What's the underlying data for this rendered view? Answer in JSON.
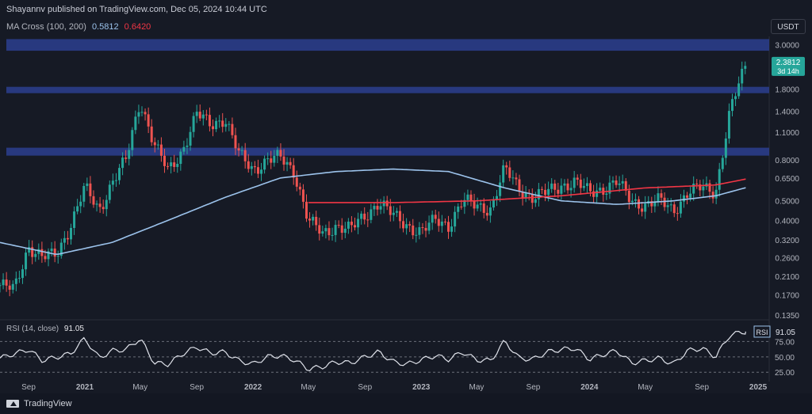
{
  "header": {
    "title": "Shayannv published on TradingView.com, Dec 05, 2024 10:44 UTC"
  },
  "indicator": {
    "name": "MA Cross (100, 200)",
    "ma100_value": "0.5812",
    "ma200_value": "0.6420"
  },
  "currency": "USDT",
  "price_tag": {
    "price": "2.3812",
    "countdown": "3d 14h"
  },
  "rsi": {
    "label": "RSI (14, close)",
    "value": "91.05",
    "tag_label": "RSI",
    "levels": [
      "75.00",
      "50.00",
      "25.00"
    ]
  },
  "footer": {
    "brand": "TradingView"
  },
  "colors": {
    "up": "#26a69a",
    "down": "#ef5350",
    "ma100": "#9cc3ec",
    "ma200": "#f23645",
    "zone": "#2b3f8f",
    "background": "#161a25"
  },
  "chart_data": {
    "type": "candlestick",
    "scale": "log",
    "y_ticks": [
      "3.0000",
      "1.8000",
      "1.4000",
      "1.1000",
      "0.8000",
      "0.6500",
      "0.5000",
      "0.4000",
      "0.3200",
      "0.2600",
      "0.2100",
      "0.1700",
      "0.1350"
    ],
    "x_ticks": [
      "Sep",
      "2021",
      "May",
      "Sep",
      "2022",
      "May",
      "Sep",
      "2023",
      "May",
      "Sep",
      "2024",
      "May",
      "Sep",
      "2025"
    ],
    "supply_zones": [
      {
        "low": 2.8,
        "high": 3.2
      },
      {
        "low": 1.72,
        "high": 1.85
      },
      {
        "low": 0.84,
        "high": 0.92
      }
    ],
    "price_path": [
      [
        "2020-07-01",
        0.19
      ],
      [
        "2020-08-01",
        0.18
      ],
      [
        "2020-09-01",
        0.3
      ],
      [
        "2020-10-01",
        0.26
      ],
      [
        "2020-11-01",
        0.27
      ],
      [
        "2020-12-01",
        0.38
      ],
      [
        "2021-01-01",
        0.58
      ],
      [
        "2021-02-01",
        0.45
      ],
      [
        "2021-03-01",
        0.62
      ],
      [
        "2021-04-01",
        0.8
      ],
      [
        "2021-05-01",
        1.6
      ],
      [
        "2021-06-01",
        0.95
      ],
      [
        "2021-07-01",
        0.7
      ],
      [
        "2021-08-01",
        0.9
      ],
      [
        "2021-09-01",
        1.35
      ],
      [
        "2021-10-01",
        1.2
      ],
      [
        "2021-11-01",
        1.3
      ],
      [
        "2021-12-01",
        0.85
      ],
      [
        "2022-01-01",
        0.72
      ],
      [
        "2022-02-01",
        0.8
      ],
      [
        "2022-03-01",
        0.82
      ],
      [
        "2022-04-01",
        0.7
      ],
      [
        "2022-05-01",
        0.4
      ],
      [
        "2022-06-01",
        0.34
      ],
      [
        "2022-07-01",
        0.38
      ],
      [
        "2022-08-01",
        0.36
      ],
      [
        "2022-09-01",
        0.42
      ],
      [
        "2022-10-01",
        0.5
      ],
      [
        "2022-11-01",
        0.42
      ],
      [
        "2022-12-01",
        0.38
      ],
      [
        "2023-01-01",
        0.35
      ],
      [
        "2023-02-01",
        0.4
      ],
      [
        "2023-03-01",
        0.38
      ],
      [
        "2023-04-01",
        0.5
      ],
      [
        "2023-05-01",
        0.47
      ],
      [
        "2023-06-01",
        0.46
      ],
      [
        "2023-07-01",
        0.72
      ],
      [
        "2023-08-01",
        0.58
      ],
      [
        "2023-09-01",
        0.52
      ],
      [
        "2023-10-01",
        0.55
      ],
      [
        "2023-11-01",
        0.6
      ],
      [
        "2023-12-01",
        0.62
      ],
      [
        "2024-01-01",
        0.55
      ],
      [
        "2024-02-01",
        0.58
      ],
      [
        "2024-03-01",
        0.62
      ],
      [
        "2024-04-01",
        0.5
      ],
      [
        "2024-05-01",
        0.48
      ],
      [
        "2024-06-01",
        0.5
      ],
      [
        "2024-07-01",
        0.45
      ],
      [
        "2024-08-01",
        0.55
      ],
      [
        "2024-09-01",
        0.58
      ],
      [
        "2024-10-01",
        0.56
      ],
      [
        "2024-11-01",
        1.4
      ],
      [
        "2024-12-05",
        2.3812
      ]
    ],
    "ma100": [
      [
        "2020-07-01",
        0.31
      ],
      [
        "2020-11-01",
        0.27
      ],
      [
        "2021-03-01",
        0.31
      ],
      [
        "2021-07-01",
        0.4
      ],
      [
        "2021-11-01",
        0.52
      ],
      [
        "2022-03-01",
        0.65
      ],
      [
        "2022-07-01",
        0.7
      ],
      [
        "2022-11-01",
        0.72
      ],
      [
        "2023-03-01",
        0.7
      ],
      [
        "2023-07-01",
        0.58
      ],
      [
        "2023-11-01",
        0.5
      ],
      [
        "2024-03-01",
        0.48
      ],
      [
        "2024-07-01",
        0.5
      ],
      [
        "2024-10-01",
        0.53
      ],
      [
        "2024-12-05",
        0.5812
      ]
    ],
    "ma200": [
      [
        "2022-05-01",
        0.49
      ],
      [
        "2022-11-01",
        0.49
      ],
      [
        "2023-05-01",
        0.5
      ],
      [
        "2023-11-01",
        0.53
      ],
      [
        "2024-05-01",
        0.58
      ],
      [
        "2024-10-01",
        0.6
      ],
      [
        "2024-12-05",
        0.642
      ]
    ],
    "rsi_path": [
      [
        "2020-07-01",
        48
      ],
      [
        "2020-09-01",
        62
      ],
      [
        "2020-10-01",
        44
      ],
      [
        "2020-12-01",
        55
      ],
      [
        "2021-01-01",
        80
      ],
      [
        "2021-02-01",
        48
      ],
      [
        "2021-03-01",
        60
      ],
      [
        "2021-04-01",
        62
      ],
      [
        "2021-05-01",
        80
      ],
      [
        "2021-06-01",
        40
      ],
      [
        "2021-07-01",
        38
      ],
      [
        "2021-08-01",
        55
      ],
      [
        "2021-09-01",
        66
      ],
      [
        "2021-10-01",
        56
      ],
      [
        "2021-11-01",
        58
      ],
      [
        "2021-12-01",
        44
      ],
      [
        "2022-01-01",
        38
      ],
      [
        "2022-02-01",
        50
      ],
      [
        "2022-03-01",
        52
      ],
      [
        "2022-04-01",
        45
      ],
      [
        "2022-05-01",
        30
      ],
      [
        "2022-06-01",
        34
      ],
      [
        "2022-07-01",
        42
      ],
      [
        "2022-08-01",
        40
      ],
      [
        "2022-09-01",
        50
      ],
      [
        "2022-10-01",
        58
      ],
      [
        "2022-11-01",
        42
      ],
      [
        "2022-12-01",
        38
      ],
      [
        "2023-01-01",
        45
      ],
      [
        "2023-02-01",
        52
      ],
      [
        "2023-03-01",
        46
      ],
      [
        "2023-04-01",
        58
      ],
      [
        "2023-05-01",
        45
      ],
      [
        "2023-06-01",
        44
      ],
      [
        "2023-07-01",
        76
      ],
      [
        "2023-08-01",
        48
      ],
      [
        "2023-09-01",
        46
      ],
      [
        "2023-10-01",
        58
      ],
      [
        "2023-11-01",
        62
      ],
      [
        "2023-12-01",
        64
      ],
      [
        "2024-01-01",
        46
      ],
      [
        "2024-02-01",
        54
      ],
      [
        "2024-03-01",
        60
      ],
      [
        "2024-04-01",
        40
      ],
      [
        "2024-05-01",
        44
      ],
      [
        "2024-06-01",
        48
      ],
      [
        "2024-07-01",
        38
      ],
      [
        "2024-08-01",
        60
      ],
      [
        "2024-09-01",
        64
      ],
      [
        "2024-10-01",
        50
      ],
      [
        "2024-11-01",
        86
      ],
      [
        "2024-12-05",
        91.05
      ]
    ]
  }
}
